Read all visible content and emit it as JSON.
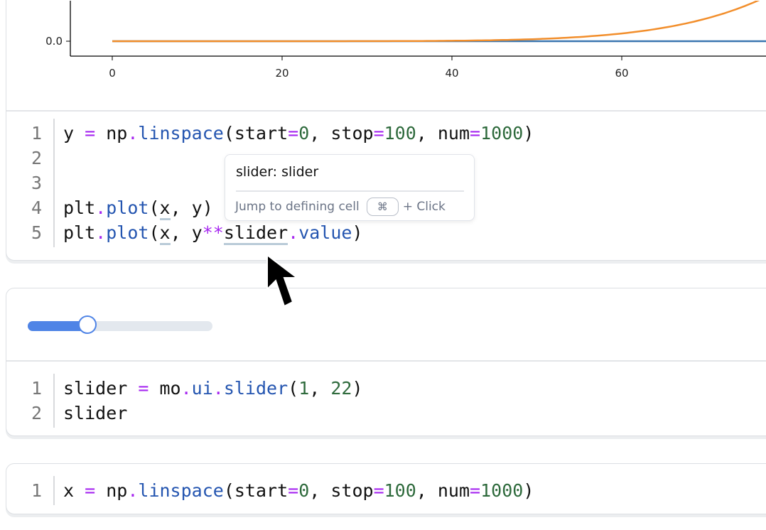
{
  "chart_data": {
    "type": "line",
    "xticks": [
      "0",
      "20",
      "40",
      "60"
    ],
    "yticks": [
      "0.0"
    ],
    "series": [
      {
        "expr": "plt.plot(x, y)",
        "color": "#3a76b0"
      },
      {
        "expr": "plt.plot(x, y**slider.value)",
        "color": "#f28e2b"
      }
    ],
    "xlim": [
      -5,
      77
    ],
    "grid": false
  },
  "cell1": {
    "line_numbers": [
      "1",
      "2",
      "3",
      "4",
      "5"
    ],
    "lines": [
      [
        [
          "y ",
          ""
        ],
        [
          "=",
          "kw"
        ],
        [
          " np",
          ""
        ],
        [
          ".",
          "kw"
        ],
        [
          "linspace",
          "fn"
        ],
        [
          "(start",
          ""
        ],
        [
          "=",
          "kw"
        ],
        [
          "0",
          "num"
        ],
        [
          ", stop",
          ""
        ],
        [
          "=",
          "kw"
        ],
        [
          "100",
          "num"
        ],
        [
          ", num",
          ""
        ],
        [
          "=",
          "kw"
        ],
        [
          "1000",
          "num"
        ],
        [
          ")",
          ""
        ]
      ],
      [],
      [],
      [
        [
          "plt",
          ""
        ],
        [
          ".",
          "kw"
        ],
        [
          "plot",
          "fn"
        ],
        [
          "(",
          ""
        ],
        [
          "x",
          "ul"
        ],
        [
          ", y)",
          ""
        ]
      ],
      [
        [
          "plt",
          ""
        ],
        [
          ".",
          "kw"
        ],
        [
          "plot",
          "fn"
        ],
        [
          "(",
          ""
        ],
        [
          "x",
          "ul"
        ],
        [
          ", y",
          ""
        ],
        [
          "**",
          "kw"
        ],
        [
          "slider",
          "ul"
        ],
        [
          ".",
          "kw"
        ],
        [
          "value",
          "fn"
        ],
        [
          ")",
          ""
        ]
      ]
    ]
  },
  "tooltip": {
    "title": "slider: slider",
    "hint": "Jump to defining cell",
    "key": "⌘",
    "suffix": "+ Click"
  },
  "slider_widget": {
    "min": 1,
    "max": 22,
    "value": 7,
    "accent": "#4f84e6"
  },
  "cell2": {
    "line_numbers": [
      "1",
      "2"
    ],
    "lines": [
      [
        [
          "slider ",
          ""
        ],
        [
          "=",
          "kw"
        ],
        [
          " mo",
          ""
        ],
        [
          ".",
          "kw"
        ],
        [
          "ui",
          "fn"
        ],
        [
          ".",
          "kw"
        ],
        [
          "slider",
          "fn"
        ],
        [
          "(",
          ""
        ],
        [
          "1",
          "num"
        ],
        [
          ", ",
          ""
        ],
        [
          "22",
          "num"
        ],
        [
          ")",
          ""
        ]
      ],
      [
        [
          "slider",
          ""
        ]
      ]
    ]
  },
  "cell3": {
    "line_numbers": [
      "1"
    ],
    "lines": [
      [
        [
          "x ",
          ""
        ],
        [
          "=",
          "kw"
        ],
        [
          " np",
          ""
        ],
        [
          ".",
          "kw"
        ],
        [
          "linspace",
          "fn"
        ],
        [
          "(start",
          ""
        ],
        [
          "=",
          "kw"
        ],
        [
          "0",
          "num"
        ],
        [
          ", stop",
          ""
        ],
        [
          "=",
          "kw"
        ],
        [
          "100",
          "num"
        ],
        [
          ", num",
          ""
        ],
        [
          "=",
          "kw"
        ],
        [
          "1000",
          "num"
        ],
        [
          ")",
          ""
        ]
      ]
    ]
  }
}
